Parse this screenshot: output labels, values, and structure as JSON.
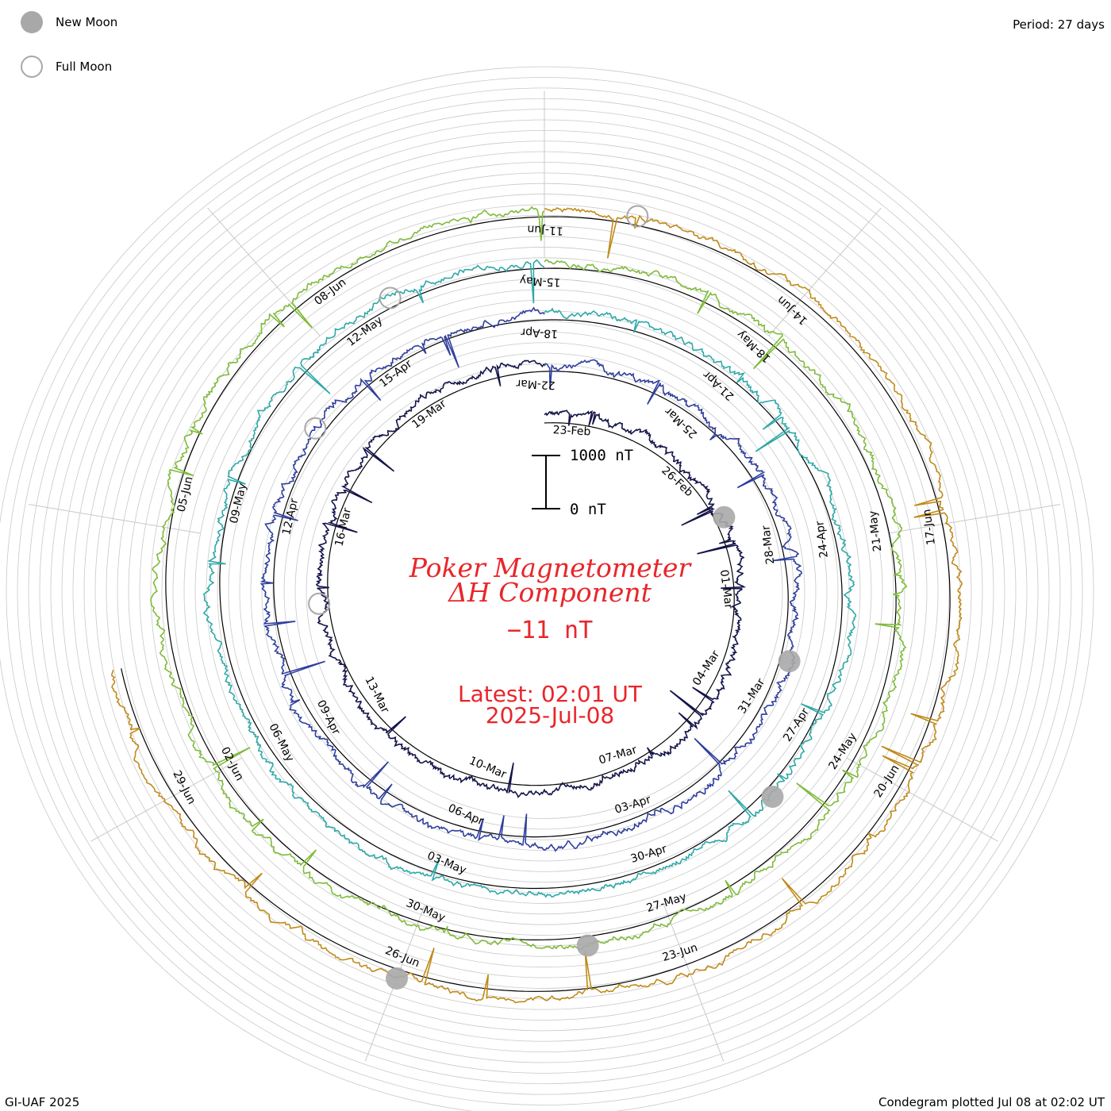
{
  "legend": {
    "new_moon": "New Moon",
    "full_moon": "Full Moon"
  },
  "period": "Period: 27 days",
  "footer_left": "GI-UAF 2025",
  "footer_right": "Condegram plotted Jul 08 at 02:02 UT",
  "colors": {
    "title": "#e8262b",
    "grid": "#c8c8c8",
    "baseline": "#000000",
    "moon": "#a8a8a8"
  },
  "chart_data": {
    "type": "line",
    "title_line1": "Poker Magnetometer",
    "title_line2": "ΔH Component",
    "current_value": "−11 nT",
    "latest_line1": "Latest: 02:01 UT",
    "latest_line2": "2025-Jul-08",
    "scale_labels": [
      "1000 nT",
      "0 nT"
    ],
    "scale_nT": [
      0,
      1000
    ],
    "period_days": 27,
    "series": [
      {
        "color": "#14144a",
        "labels": [
          "23-Feb",
          "26-Feb",
          "01-Mar",
          "04-Mar",
          "07-Mar",
          "10-Mar",
          "13-Mar",
          "16-Mar",
          "19-Mar"
        ]
      },
      {
        "color": "#2f3f9c",
        "labels": [
          "22-Mar",
          "25-Mar",
          "28-Mar",
          "31-Mar",
          "03-Apr",
          "06-Apr",
          "09-Apr",
          "12-Apr",
          "15-Apr"
        ]
      },
      {
        "color": "#2fa8a8",
        "labels": [
          "18-Apr",
          "21-Apr",
          "24-Apr",
          "27-Apr",
          "30-Apr",
          "03-May",
          "06-May",
          "09-May",
          "12-May"
        ]
      },
      {
        "color": "#7fbb3a",
        "labels": [
          "15-May",
          "18-May",
          "21-May",
          "24-May",
          "27-May",
          "30-May",
          "02-Jun",
          "05-Jun",
          "08-Jun"
        ]
      },
      {
        "color": "#c08a1a",
        "labels": [
          "11-Jun",
          "14-Jun",
          "17-Jun",
          "20-Jun",
          "23-Jun",
          "26-Jun",
          "29-Jun"
        ]
      }
    ],
    "new_moons": [
      "27-Feb",
      "29-Mar",
      "27-Apr",
      "27-May",
      "25-Jun"
    ],
    "full_moons": [
      "14-Mar",
      "13-Apr",
      "12-May",
      "11-Jun"
    ]
  }
}
